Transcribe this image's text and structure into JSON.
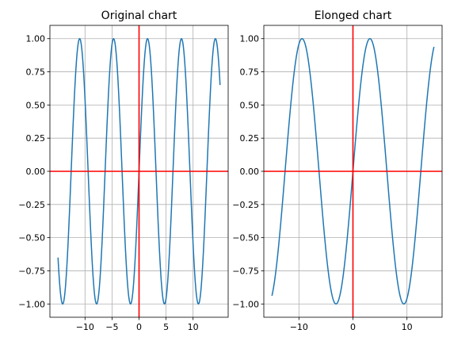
{
  "chart_data": [
    {
      "type": "line",
      "title": "Original chart",
      "xlabel": "",
      "ylabel": "",
      "function": "sin(x)",
      "x_range": [
        -15,
        15
      ],
      "xlim": [
        -16.5,
        16.5
      ],
      "ylim": [
        -1.1,
        1.1
      ],
      "x_ticks": [
        -10,
        -5,
        0,
        5,
        10
      ],
      "x_tick_labels": [
        "−10",
        "−5",
        "0",
        "5",
        "10"
      ],
      "y_ticks": [
        -1.0,
        -0.75,
        -0.5,
        -0.25,
        0.0,
        0.25,
        0.5,
        0.75,
        1.0
      ],
      "y_tick_labels": [
        "−1.00",
        "−0.75",
        "−0.50",
        "−0.25",
        "0.00",
        "0.25",
        "0.50",
        "0.75",
        "1.00"
      ],
      "grid": true,
      "reference_lines": {
        "x": 0,
        "y": 0,
        "color": "#ff0000"
      },
      "series": [
        {
          "color": "#1f77b4",
          "frequency": 1
        }
      ]
    },
    {
      "type": "line",
      "title": "Elonged chart",
      "xlabel": "",
      "ylabel": "",
      "function": "sin(x/2)",
      "x_range": [
        -15,
        15
      ],
      "xlim": [
        -16.5,
        16.5
      ],
      "ylim": [
        -1.1,
        1.1
      ],
      "x_ticks": [
        -10,
        0,
        10
      ],
      "x_tick_labels": [
        "−10",
        "0",
        "10"
      ],
      "y_ticks": [
        -1.0,
        -0.75,
        -0.5,
        -0.25,
        0.0,
        0.25,
        0.5,
        0.75,
        1.0
      ],
      "y_tick_labels": [
        "−1.00",
        "−0.75",
        "−0.50",
        "−0.25",
        "0.00",
        "0.25",
        "0.50",
        "0.75",
        "1.00"
      ],
      "grid": true,
      "reference_lines": {
        "x": 0,
        "y": 0,
        "color": "#ff0000"
      },
      "series": [
        {
          "color": "#1f77b4",
          "frequency": 0.5
        }
      ]
    }
  ]
}
